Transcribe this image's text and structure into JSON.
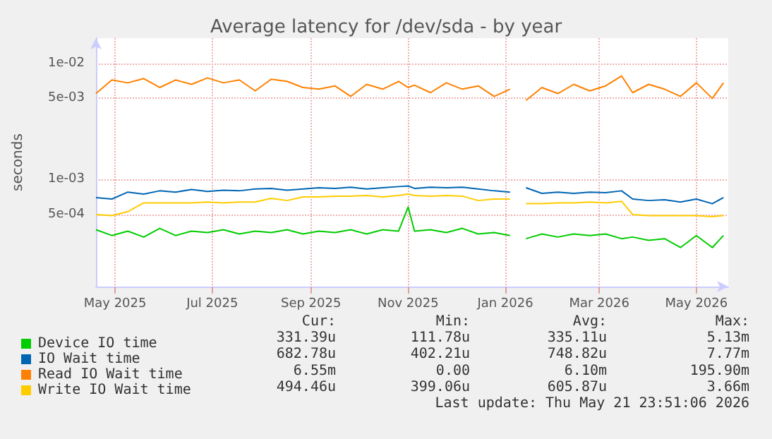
{
  "chart_data": {
    "type": "line",
    "title": "Average latency for /dev/sda - by year",
    "ylabel": "seconds",
    "x": [
      "2025-04-19",
      "2025-04-29",
      "2025-05-09",
      "2025-05-19",
      "2025-05-29",
      "2025-06-08",
      "2025-06-18",
      "2025-06-28",
      "2025-07-08",
      "2025-07-18",
      "2025-07-28",
      "2025-08-07",
      "2025-08-17",
      "2025-08-27",
      "2025-09-06",
      "2025-09-16",
      "2025-09-26",
      "2025-10-06",
      "2025-10-16",
      "2025-10-26",
      "2025-11-01",
      "2025-11-05",
      "2025-11-15",
      "2025-11-25",
      "2025-12-05",
      "2025-12-15",
      "2025-12-25",
      "2026-01-04",
      "2026-01-10",
      "2026-01-14",
      "2026-01-24",
      "2026-02-03",
      "2026-02-13",
      "2026-02-23",
      "2026-03-05",
      "2026-03-15",
      "2026-03-22",
      "2026-04-01",
      "2026-04-11",
      "2026-04-21",
      "2026-05-01",
      "2026-05-11",
      "2026-05-18"
    ],
    "series": [
      {
        "name": "Device IO time",
        "color": "#00cc00",
        "values": [
          0.00037,
          0.00033,
          0.00036,
          0.00032,
          0.00038,
          0.00033,
          0.00036,
          0.00035,
          0.00037,
          0.00034,
          0.00036,
          0.00035,
          0.00037,
          0.00034,
          0.00036,
          0.00035,
          0.00037,
          0.00034,
          0.00037,
          0.00036,
          0.00058,
          0.00036,
          0.00037,
          0.00035,
          0.00038,
          0.00034,
          0.00035,
          0.00033,
          null,
          0.00031,
          0.00034,
          0.00032,
          0.00034,
          0.00033,
          0.00034,
          0.00031,
          0.00032,
          0.0003,
          0.00031,
          0.00026,
          0.00033,
          0.00026,
          0.00033
        ]
      },
      {
        "name": "IO Wait time",
        "color": "#0066b3",
        "values": [
          0.0007,
          0.00068,
          0.00078,
          0.00075,
          0.0008,
          0.00078,
          0.00082,
          0.00079,
          0.00081,
          0.0008,
          0.00083,
          0.00084,
          0.00081,
          0.00083,
          0.00085,
          0.00084,
          0.00086,
          0.00083,
          0.00085,
          0.00087,
          0.00088,
          0.00084,
          0.00086,
          0.00085,
          0.00086,
          0.00083,
          0.0008,
          0.00078,
          null,
          0.00085,
          0.00076,
          0.00078,
          0.00076,
          0.00078,
          0.00077,
          0.0008,
          0.00068,
          0.00066,
          0.00067,
          0.00064,
          0.00068,
          0.00062,
          0.0007
        ]
      },
      {
        "name": "Read IO Wait time",
        "color": "#ff8000",
        "values": [
          0.0055,
          0.0072,
          0.0068,
          0.0074,
          0.0062,
          0.0072,
          0.0066,
          0.0075,
          0.0068,
          0.0072,
          0.0058,
          0.0073,
          0.007,
          0.0062,
          0.006,
          0.0064,
          0.0052,
          0.0066,
          0.006,
          0.007,
          0.0062,
          0.0065,
          0.0056,
          0.0068,
          0.006,
          0.0064,
          0.0052,
          0.006,
          null,
          0.0048,
          0.0062,
          0.0055,
          0.0066,
          0.0058,
          0.0064,
          0.0078,
          0.0056,
          0.0066,
          0.006,
          0.0052,
          0.0068,
          0.005,
          0.0068
        ]
      },
      {
        "name": "Write IO Wait time",
        "color": "#ffcc00",
        "values": [
          0.0005,
          0.00049,
          0.00053,
          0.00063,
          0.00063,
          0.00063,
          0.00063,
          0.00064,
          0.00063,
          0.00064,
          0.00064,
          0.00069,
          0.00066,
          0.00071,
          0.00071,
          0.00072,
          0.00072,
          0.00073,
          0.00071,
          0.00073,
          0.00075,
          0.00073,
          0.00072,
          0.00073,
          0.00072,
          0.00066,
          0.00068,
          0.00068,
          null,
          0.00062,
          0.00062,
          0.00063,
          0.00063,
          0.00064,
          0.00063,
          0.00065,
          0.0005,
          0.00049,
          0.00049,
          0.00049,
          0.00049,
          0.00048,
          0.00049
        ]
      }
    ],
    "xlim": [
      "2025-04-19",
      "2026-05-21"
    ],
    "xticks": [
      {
        "value": "2025-05-01",
        "label": "May 2025"
      },
      {
        "value": "2025-07-01",
        "label": "Jul 2025"
      },
      {
        "value": "2025-09-01",
        "label": "Sep 2025"
      },
      {
        "value": "2025-11-01",
        "label": "Nov 2025"
      },
      {
        "value": "2026-01-01",
        "label": "Jan 2026"
      },
      {
        "value": "2026-03-01",
        "label": "Mar 2026"
      },
      {
        "value": "2026-05-01",
        "label": "May 2026"
      }
    ],
    "ylim": [
      0.00012,
      0.0165
    ],
    "yticks": [
      {
        "value": 0.0005,
        "label": "5e-04"
      },
      {
        "value": 0.001,
        "label": "1e-03"
      },
      {
        "value": 0.005,
        "label": "5e-03"
      },
      {
        "value": 0.01,
        "label": "1e-02"
      }
    ],
    "log": "y",
    "grid": true,
    "legend": "bottom left",
    "marker": "none",
    "line_style": "solid",
    "annotations": [
      "Cur:",
      "Min:",
      "Avg:",
      "Max:",
      "331.39u",
      "111.78u",
      "335.11u",
      "5.13m",
      "682.78u",
      "402.21u",
      "748.82u",
      "7.77m",
      "6.55m",
      "0.00",
      "6.10m",
      "195.90m",
      "494.46u",
      "399.06u",
      "605.87u",
      "3.66m",
      "Last update: Thu May 21 23:51:06 2026"
    ]
  }
}
